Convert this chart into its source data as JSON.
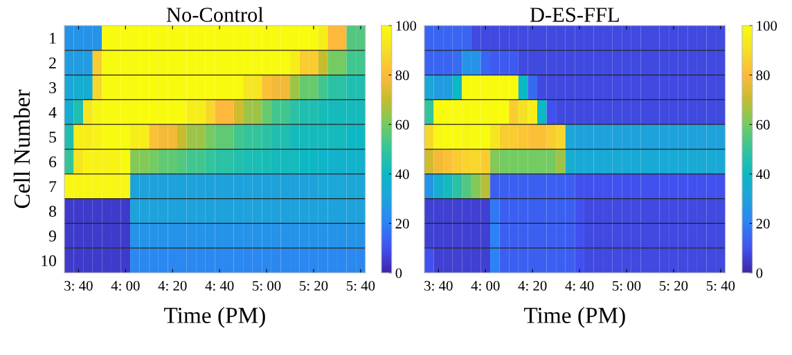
{
  "chart_data": [
    {
      "type": "heatmap",
      "title": "No-Control",
      "xlabel": "Time (PM)",
      "ylabel": "Cell Number",
      "grid": "y",
      "categories": [
        null,
        "3: 40",
        null,
        null,
        null,
        null,
        "4: 00",
        null,
        null,
        null,
        null,
        "4: 20",
        null,
        null,
        null,
        null,
        "4: 40",
        null,
        null,
        null,
        null,
        "5: 00",
        null,
        null,
        null,
        null,
        "5: 20",
        null,
        null,
        null,
        null,
        "5: 40"
      ],
      "y_categories": [
        "1",
        "2",
        "3",
        "4",
        "5",
        "6",
        "7",
        "8",
        "9",
        "10"
      ],
      "cells": [
        [
          25,
          25,
          25,
          25,
          100,
          100,
          100,
          100,
          100,
          100,
          100,
          100,
          100,
          100,
          100,
          100,
          100,
          100,
          100,
          100,
          100,
          100,
          100,
          100,
          100,
          100,
          100,
          95,
          80,
          80,
          55,
          55
        ],
        [
          28,
          28,
          28,
          85,
          100,
          100,
          100,
          100,
          100,
          100,
          100,
          100,
          100,
          100,
          100,
          100,
          100,
          100,
          100,
          100,
          100,
          100,
          100,
          100,
          95,
          85,
          85,
          70,
          60,
          60,
          52,
          52
        ],
        [
          32,
          35,
          35,
          88,
          100,
          100,
          100,
          100,
          100,
          100,
          100,
          100,
          100,
          100,
          100,
          100,
          100,
          100,
          100,
          92,
          92,
          82,
          78,
          78,
          65,
          58,
          58,
          52,
          48,
          48,
          45,
          45
        ],
        [
          35,
          45,
          92,
          98,
          100,
          100,
          100,
          100,
          100,
          100,
          100,
          100,
          100,
          95,
          95,
          88,
          80,
          80,
          72,
          65,
          65,
          58,
          52,
          52,
          48,
          45,
          45,
          43,
          42,
          42,
          42,
          42
        ],
        [
          45,
          95,
          95,
          97,
          100,
          100,
          100,
          95,
          95,
          82,
          78,
          78,
          70,
          65,
          65,
          60,
          57,
          57,
          52,
          50,
          50,
          48,
          45,
          45,
          42,
          42,
          42,
          42,
          42,
          42,
          40,
          40
        ],
        [
          50,
          92,
          97,
          97,
          97,
          97,
          100,
          62,
          62,
          60,
          57,
          57,
          55,
          52,
          52,
          50,
          48,
          48,
          46,
          44,
          44,
          43,
          42,
          42,
          42,
          40,
          40,
          38,
          37,
          37,
          37,
          37
        ],
        [
          98,
          98,
          98,
          98,
          98,
          98,
          98,
          30,
          30,
          30,
          30,
          30,
          30,
          30,
          30,
          30,
          30,
          30,
          30,
          30,
          30,
          30,
          30,
          30,
          30,
          30,
          30,
          32,
          32,
          32,
          32,
          32
        ],
        [
          5,
          5,
          5,
          5,
          5,
          5,
          5,
          30,
          30,
          30,
          30,
          30,
          30,
          30,
          30,
          30,
          30,
          30,
          30,
          30,
          30,
          30,
          30,
          30,
          30,
          30,
          30,
          30,
          30,
          30,
          30,
          30
        ],
        [
          5,
          5,
          5,
          5,
          5,
          5,
          5,
          25,
          25,
          25,
          25,
          25,
          25,
          25,
          25,
          25,
          25,
          25,
          25,
          25,
          25,
          25,
          25,
          25,
          25,
          25,
          25,
          25,
          25,
          25,
          25,
          25
        ],
        [
          5,
          5,
          5,
          5,
          5,
          5,
          5,
          22,
          22,
          22,
          22,
          22,
          22,
          22,
          22,
          22,
          22,
          22,
          22,
          22,
          22,
          22,
          22,
          22,
          22,
          22,
          22,
          22,
          22,
          22,
          22,
          22
        ]
      ],
      "clim": [
        0,
        100
      ],
      "cticks": [
        0,
        20,
        40,
        60,
        80,
        100
      ]
    },
    {
      "type": "heatmap",
      "title": "D-ES-FFL",
      "xlabel": "Time (PM)",
      "grid": "y",
      "tick_labels": "x",
      "categories": [
        null,
        "3: 40",
        null,
        null,
        null,
        null,
        "4: 00",
        null,
        null,
        null,
        null,
        "4: 20",
        null,
        null,
        null,
        null,
        "4: 40",
        null,
        null,
        null,
        null,
        "5: 00",
        null,
        null,
        null,
        null,
        "5: 20",
        null,
        null,
        null,
        null,
        "5: 40"
      ],
      "y_categories": [
        "1",
        "2",
        "3",
        "4",
        "5",
        "6",
        "7",
        "8",
        "9",
        "10"
      ],
      "cells": [
        [
          14,
          14,
          14,
          14,
          14,
          8,
          8,
          8,
          8,
          8,
          8,
          8,
          8,
          8,
          8,
          8,
          8,
          8,
          8,
          8,
          8,
          8,
          8,
          8,
          8,
          8,
          8,
          8,
          8,
          8,
          8,
          8
        ],
        [
          14,
          14,
          14,
          16,
          25,
          25,
          14,
          12,
          12,
          12,
          8,
          8,
          8,
          8,
          8,
          8,
          8,
          8,
          8,
          8,
          8,
          8,
          8,
          8,
          8,
          8,
          8,
          8,
          8,
          8,
          8,
          8
        ],
        [
          32,
          28,
          28,
          40,
          100,
          100,
          100,
          100,
          100,
          100,
          40,
          15,
          8,
          8,
          8,
          8,
          8,
          8,
          8,
          8,
          8,
          8,
          8,
          8,
          8,
          8,
          8,
          8,
          8,
          8,
          8,
          8
        ],
        [
          50,
          100,
          100,
          100,
          100,
          100,
          100,
          100,
          100,
          85,
          90,
          95,
          40,
          10,
          8,
          8,
          8,
          8,
          8,
          8,
          8,
          8,
          8,
          8,
          8,
          8,
          8,
          8,
          8,
          8,
          8,
          8
        ],
        [
          88,
          98,
          100,
          100,
          98,
          100,
          100,
          92,
          85,
          85,
          83,
          82,
          82,
          85,
          88,
          32,
          30,
          30,
          30,
          30,
          30,
          30,
          30,
          30,
          30,
          30,
          30,
          30,
          30,
          30,
          30,
          30
        ],
        [
          72,
          78,
          82,
          85,
          87,
          88,
          85,
          62,
          60,
          60,
          60,
          60,
          60,
          60,
          65,
          35,
          33,
          33,
          33,
          33,
          33,
          33,
          33,
          33,
          33,
          33,
          33,
          33,
          33,
          33,
          33,
          33
        ],
        [
          25,
          35,
          42,
          48,
          55,
          62,
          68,
          13,
          13,
          13,
          13,
          13,
          13,
          13,
          13,
          13,
          10,
          10,
          10,
          10,
          10,
          10,
          10,
          10,
          10,
          10,
          10,
          10,
          10,
          10,
          10,
          10
        ],
        [
          6,
          6,
          6,
          6,
          6,
          6,
          6,
          18,
          13,
          13,
          13,
          13,
          13,
          13,
          13,
          13,
          10,
          8,
          8,
          8,
          8,
          8,
          8,
          8,
          8,
          8,
          8,
          8,
          8,
          8,
          8,
          8
        ],
        [
          6,
          6,
          6,
          6,
          6,
          6,
          6,
          20,
          13,
          13,
          13,
          13,
          13,
          13,
          13,
          13,
          10,
          8,
          8,
          8,
          8,
          8,
          8,
          8,
          8,
          8,
          8,
          8,
          8,
          8,
          8,
          8
        ],
        [
          10,
          6,
          6,
          6,
          6,
          6,
          6,
          20,
          13,
          13,
          13,
          13,
          13,
          13,
          13,
          13,
          10,
          8,
          8,
          8,
          8,
          8,
          8,
          8,
          8,
          8,
          8,
          8,
          8,
          8,
          8,
          8
        ]
      ],
      "clim": [
        0,
        100
      ],
      "cticks": [
        0,
        20,
        40,
        60,
        80,
        100
      ]
    }
  ]
}
